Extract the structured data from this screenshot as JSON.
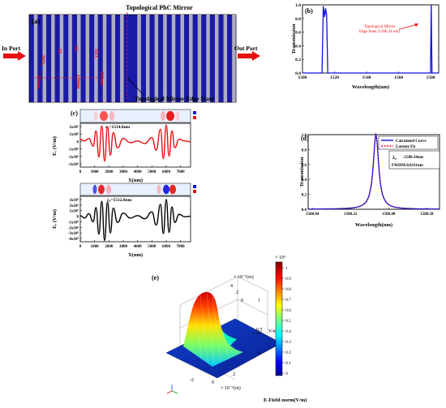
{
  "panel_a": {
    "label": "(a)",
    "title": "Topological PhC Mirror",
    "in_port": "In Port",
    "out_port": "Out Port",
    "edge_state": "Topological Mirror Edge State",
    "layers": [
      "SiO₂",
      "Si",
      "Si",
      "SiO₂"
    ],
    "dims": [
      "275nm",
      "150nm",
      "220nm"
    ]
  },
  "panel_b": {
    "label": "(b)",
    "annotation_line1": "Topological Mirror",
    "annotation_line2": "Edge State (1580.34 nm)"
  },
  "panel_c": {
    "label": "(c)",
    "lambda_top": "λ₀=1514.8nm",
    "lambda_bottom": "λ₀=1512.8nm",
    "ylabel": "Eᵣ (V/m)",
    "ylabel_top": "E",
    "xlabel": "X(nm)"
  },
  "panel_d": {
    "label": "(d)",
    "legend": [
      "Calculated Curve",
      "Lorentz Fit"
    ],
    "lambda_label": "λ₀",
    "lambda_value": ":1580.34nm",
    "fwhm": "FWHM:0.0311nm"
  },
  "panel_e": {
    "label": "(e)",
    "colorbar_title": "E-Field norm(V/m)",
    "colorbar_exp": "× 10⁶",
    "colorbar_ticks": [
      "1",
      "0.9",
      "0.8",
      "0.7",
      "0.6",
      "0.5",
      "0.4",
      "0.3",
      "0.2",
      "0.1",
      "0"
    ],
    "z_exp": "× 10⁶",
    "z_unit": "V/m",
    "z_ticks": [
      "1",
      "0.5",
      "0"
    ],
    "y_axis_label": "× 10⁻⁶(m)",
    "y_ticks": [
      "4",
      "2",
      "0"
    ],
    "x_axis_label": "× 10⁻⁶(m)",
    "x_ticks": [
      "-2",
      "0",
      "2"
    ]
  },
  "chart_data": [
    {
      "type": "line",
      "panel": "(b)",
      "xlabel": "Wavelength(nm)",
      "ylabel": "Transmission",
      "xlim": [
        1500,
        1585
      ],
      "ylim": [
        0,
        1.0
      ],
      "x_ticks": [
        1500,
        1520,
        1540,
        1560,
        1580
      ],
      "y_ticks": [
        0.0,
        0.2,
        0.4,
        0.6,
        0.8,
        1.0
      ],
      "series": [
        {
          "x": [
            1500,
            1512.2,
            1513.0,
            1513.8,
            1514.4,
            1515.1,
            1515.8,
            1520,
            1560,
            1579.9,
            1580.34,
            1580.8,
            1585
          ],
          "y": [
            0.0,
            0.0,
            0.98,
            0.82,
            0.95,
            0.85,
            0.0,
            0.0,
            0.0,
            0.0,
            1.0,
            0.0,
            0.0
          ]
        }
      ]
    },
    {
      "type": "line",
      "panel": "(c) top",
      "xlabel": "X(nm)",
      "xlim": [
        0,
        7700
      ],
      "ylim": [
        -3000000.0,
        2200000.0
      ],
      "x_ticks": [
        0,
        1000,
        2000,
        3000,
        4000,
        5000,
        6000,
        7000
      ],
      "y_tick_labels": [
        "2x10⁶",
        "1x10⁶",
        "0",
        "-1x10⁶",
        "-2x10⁶",
        "-3x10⁶"
      ],
      "series": [
        {
          "x": [
            0,
            300,
            600,
            900,
            1100,
            1300,
            1500,
            1700,
            1900,
            2100,
            2300,
            2600,
            3000,
            3500,
            4000,
            4500,
            5000,
            5300,
            5600,
            5800,
            6000,
            6200,
            6400,
            6600,
            6900,
            7300,
            7700
          ],
          "y": [
            0.3,
            0.1,
            0.4,
            -0.5,
            1.3,
            -1.8,
            1.9,
            -2.3,
            1.8,
            -1.6,
            1.1,
            -0.7,
            0.4,
            -0.1,
            0.1,
            -0.2,
            0.5,
            -1.0,
            1.5,
            -2.0,
            2.0,
            -1.7,
            1.3,
            -0.7,
            0.3,
            0.1,
            0.0
          ]
        }
      ]
    },
    {
      "type": "line",
      "panel": "(c) bottom",
      "xlabel": "X(nm)",
      "xlim": [
        0,
        7700
      ],
      "ylim": [
        -4000000.0,
        3300000.0
      ],
      "x_ticks": [
        0,
        1000,
        2000,
        3000,
        4000,
        5000,
        6000,
        7000
      ],
      "y_tick_labels": [
        "3x10⁶",
        "2x10⁶",
        "1x10⁶",
        "0",
        "-1x10⁶",
        "-2x10⁶",
        "-3x10⁶",
        "-4x10⁶"
      ],
      "series": [
        {
          "x": [
            0,
            300,
            600,
            900,
            1100,
            1300,
            1500,
            1700,
            1900,
            2100,
            2300,
            2600,
            3000,
            3500,
            4000,
            4500,
            5000,
            5300,
            5600,
            5800,
            6000,
            6200,
            6400,
            6600,
            6900,
            7300,
            7700
          ],
          "y": [
            0.2,
            -0.2,
            0.5,
            -0.8,
            1.5,
            -2.8,
            2.5,
            -3.8,
            2.4,
            -2.6,
            1.4,
            -0.9,
            0.6,
            -0.2,
            0.2,
            -0.3,
            0.8,
            -1.3,
            2.0,
            -2.7,
            2.8,
            -2.5,
            1.6,
            -0.9,
            0.4,
            0.0,
            0.1
          ]
        }
      ]
    },
    {
      "type": "line",
      "panel": "(d)",
      "xlabel": "Wavelength(nm)",
      "ylabel": "Transmission",
      "xlim": [
        1580.02,
        1580.64
      ],
      "ylim": [
        0,
        1.0
      ],
      "x_ticks": [
        1580.04,
        1580.22,
        1580.4,
        1580.58
      ],
      "y_ticks": [
        0.0,
        0.2,
        0.4,
        0.6,
        0.8,
        1.0
      ],
      "center": 1580.34,
      "fwhm": 0.0311,
      "series": [
        {
          "name": "Calculated Curve"
        },
        {
          "name": "Lorentz Fit"
        }
      ]
    }
  ]
}
